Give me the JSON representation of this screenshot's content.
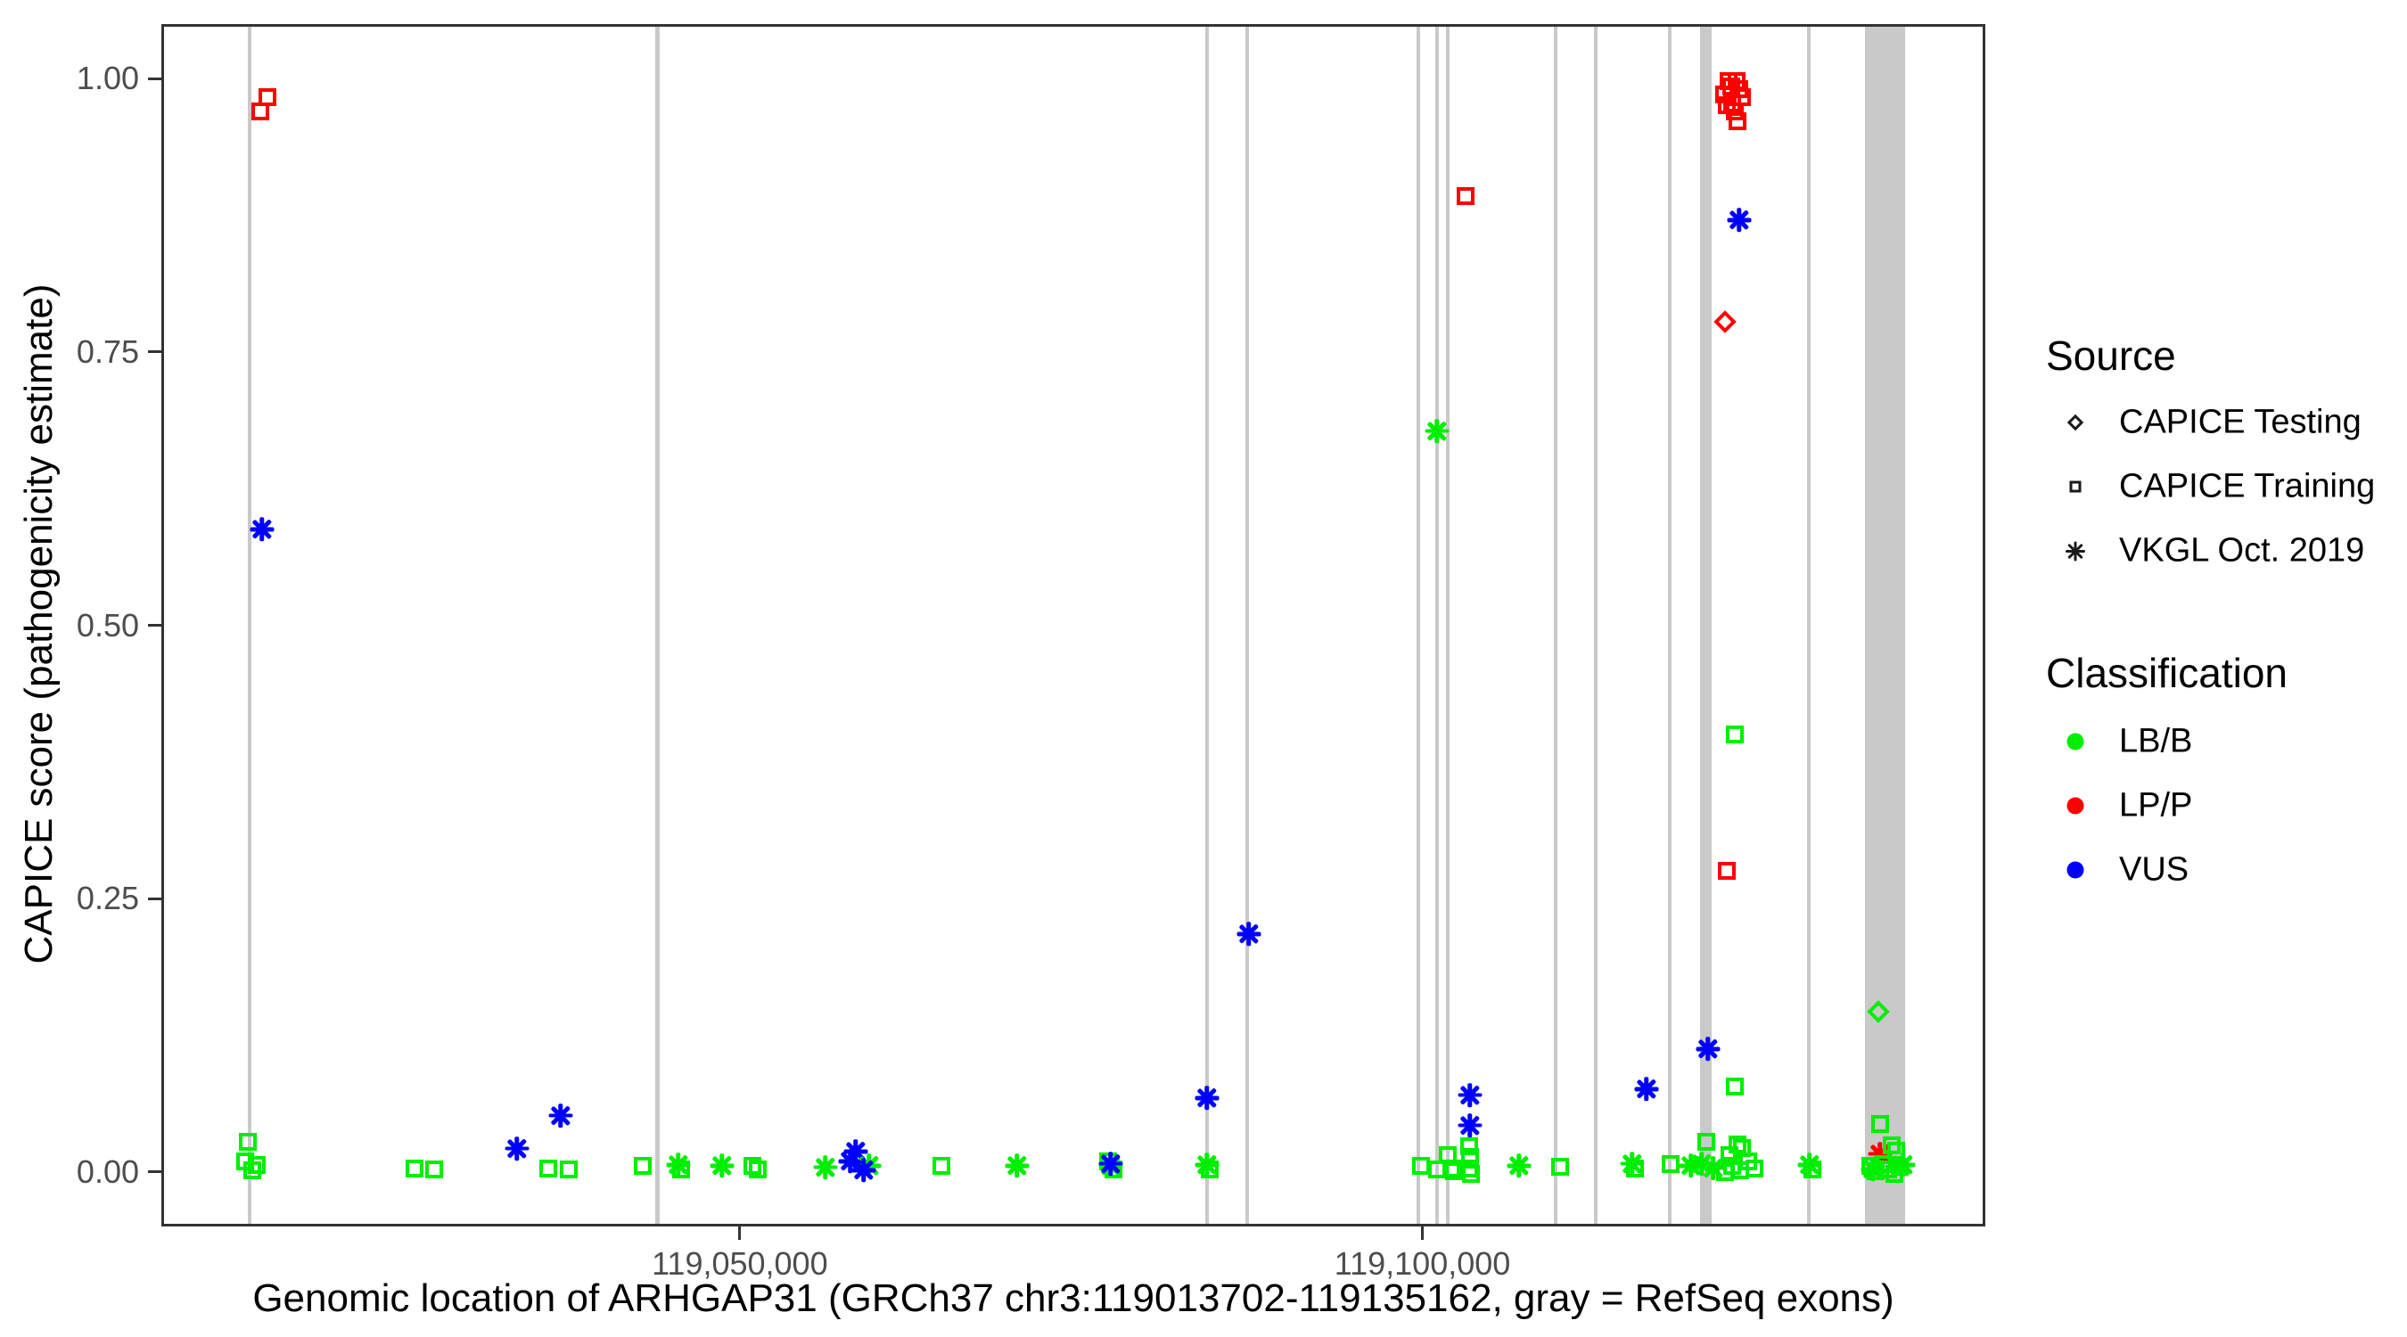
{
  "chart_data": {
    "type": "scatter",
    "xlabel": "Genomic location of ARHGAP31 (GRCh37 chr3:119013702-119135162, gray = RefSeq exons)",
    "ylabel": "CAPICE score (pathogenicity estimate)",
    "x_axis": {
      "min": 119007629,
      "max": 119141235,
      "ticks": [
        {
          "value": 119050000,
          "label": "119,050,000"
        },
        {
          "value": 119100000,
          "label": "119,100,000"
        }
      ]
    },
    "y_axis": {
      "min": -0.0498,
      "max": 1.0498,
      "ticks": [
        {
          "value": 0.0,
          "label": "0.00"
        },
        {
          "value": 0.25,
          "label": "0.25"
        },
        {
          "value": 0.5,
          "label": "0.50"
        },
        {
          "value": 0.75,
          "label": "0.75"
        },
        {
          "value": 1.0,
          "label": "1.00"
        }
      ]
    },
    "legend": {
      "source_title": "Source",
      "source_items": [
        {
          "label": "CAPICE Testing",
          "marker": "diamond"
        },
        {
          "label": "CAPICE Training",
          "marker": "square"
        },
        {
          "label": "VKGL Oct. 2019",
          "marker": "asterisk"
        }
      ],
      "classification_title": "Classification",
      "classification_items": [
        {
          "label": "LB/B",
          "color": "#00EE00"
        },
        {
          "label": "LP/P",
          "color": "#FF0000"
        },
        {
          "label": "VUS",
          "color": "#0000FF"
        }
      ]
    },
    "colors": {
      "LB/B": "#00EE00",
      "LP/P": "#FF0000",
      "VUS": "#0000FF"
    },
    "exon_color": "#C9C9C9",
    "exons": [
      {
        "start": 119013770,
        "end": 119014030
      },
      {
        "start": 119043640,
        "end": 119043940
      },
      {
        "start": 119083920,
        "end": 119084180
      },
      {
        "start": 119086860,
        "end": 119087120
      },
      {
        "start": 119099380,
        "end": 119099640
      },
      {
        "start": 119100760,
        "end": 119101020
      },
      {
        "start": 119101540,
        "end": 119101800
      },
      {
        "start": 119109420,
        "end": 119109680
      },
      {
        "start": 119112360,
        "end": 119112620
      },
      {
        "start": 119117800,
        "end": 119118060
      },
      {
        "start": 119120140,
        "end": 119121000
      },
      {
        "start": 119127980,
        "end": 119128240
      },
      {
        "start": 119132250,
        "end": 119135160
      }
    ],
    "points": [
      {
        "pos": 119015200,
        "score": 0.985,
        "src": "training",
        "cls": "LP/P"
      },
      {
        "pos": 119014700,
        "score": 0.972,
        "src": "training",
        "cls": "LP/P"
      },
      {
        "pos": 119014800,
        "score": 0.59,
        "src": "vkgl",
        "cls": "VUS"
      },
      {
        "pos": 119013750,
        "score": 0.03,
        "src": "training",
        "cls": "LB/B"
      },
      {
        "pos": 119013600,
        "score": 0.012,
        "src": "training",
        "cls": "LB/B"
      },
      {
        "pos": 119014100,
        "score": 0.004,
        "src": "training",
        "cls": "LB/B"
      },
      {
        "pos": 119014400,
        "score": 0.009,
        "src": "training",
        "cls": "LB/B"
      },
      {
        "pos": 119026000,
        "score": 0.006,
        "src": "training",
        "cls": "LB/B"
      },
      {
        "pos": 119027400,
        "score": 0.005,
        "src": "training",
        "cls": "LB/B"
      },
      {
        "pos": 119033500,
        "score": 0.024,
        "src": "vkgl",
        "cls": "VUS"
      },
      {
        "pos": 119035800,
        "score": 0.006,
        "src": "training",
        "cls": "LB/B"
      },
      {
        "pos": 119037300,
        "score": 0.005,
        "src": "training",
        "cls": "LB/B"
      },
      {
        "pos": 119036700,
        "score": 0.054,
        "src": "vkgl",
        "cls": "VUS"
      },
      {
        "pos": 119042700,
        "score": 0.008,
        "src": "training",
        "cls": "LB/B"
      },
      {
        "pos": 119045300,
        "score": 0.009,
        "src": "vkgl",
        "cls": "LB/B"
      },
      {
        "pos": 119045500,
        "score": 0.005,
        "src": "training",
        "cls": "LB/B"
      },
      {
        "pos": 119048500,
        "score": 0.008,
        "src": "vkgl",
        "cls": "LB/B"
      },
      {
        "pos": 119050700,
        "score": 0.008,
        "src": "training",
        "cls": "LB/B"
      },
      {
        "pos": 119051100,
        "score": 0.005,
        "src": "training",
        "cls": "LB/B"
      },
      {
        "pos": 119056100,
        "score": 0.007,
        "src": "vkgl",
        "cls": "LB/B"
      },
      {
        "pos": 119058300,
        "score": 0.021,
        "src": "vkgl",
        "cls": "VUS"
      },
      {
        "pos": 119057900,
        "score": 0.012,
        "src": "vkgl",
        "cls": "VUS"
      },
      {
        "pos": 119059300,
        "score": 0.008,
        "src": "vkgl",
        "cls": "LB/B"
      },
      {
        "pos": 119058900,
        "score": 0.004,
        "src": "vkgl",
        "cls": "VUS"
      },
      {
        "pos": 119064600,
        "score": 0.008,
        "src": "training",
        "cls": "LB/B"
      },
      {
        "pos": 119070100,
        "score": 0.008,
        "src": "vkgl",
        "cls": "LB/B"
      },
      {
        "pos": 119076800,
        "score": 0.012,
        "src": "training",
        "cls": "LB/B"
      },
      {
        "pos": 119077200,
        "score": 0.005,
        "src": "training",
        "cls": "LB/B"
      },
      {
        "pos": 119077000,
        "score": 0.008,
        "src": "vkgl",
        "cls": "LB/B"
      },
      {
        "pos": 119077000,
        "score": 0.01,
        "src": "vkgl",
        "cls": "VUS"
      },
      {
        "pos": 119084000,
        "score": 0.07,
        "src": "vkgl",
        "cls": "VUS"
      },
      {
        "pos": 119084050,
        "score": 0.009,
        "src": "vkgl",
        "cls": "LB/B"
      },
      {
        "pos": 119084200,
        "score": 0.005,
        "src": "training",
        "cls": "LB/B"
      },
      {
        "pos": 119087100,
        "score": 0.22,
        "src": "vkgl",
        "cls": "VUS"
      },
      {
        "pos": 119099700,
        "score": 0.008,
        "src": "training",
        "cls": "LB/B"
      },
      {
        "pos": 119100900,
        "score": 0.005,
        "src": "training",
        "cls": "LB/B"
      },
      {
        "pos": 119101650,
        "score": 0.018,
        "src": "training",
        "cls": "LB/B"
      },
      {
        "pos": 119101900,
        "score": 0.006,
        "src": "training",
        "cls": "LB/B"
      },
      {
        "pos": 119102100,
        "score": 0.003,
        "src": "training",
        "cls": "LB/B"
      },
      {
        "pos": 119100850,
        "score": 0.68,
        "src": "vkgl",
        "cls": "LB/B"
      },
      {
        "pos": 119103000,
        "score": 0.895,
        "src": "training",
        "cls": "LP/P"
      },
      {
        "pos": 119103300,
        "score": 0.073,
        "src": "vkgl",
        "cls": "VUS"
      },
      {
        "pos": 119103300,
        "score": 0.045,
        "src": "vkgl",
        "cls": "VUS"
      },
      {
        "pos": 119103200,
        "score": 0.026,
        "src": "training",
        "cls": "LB/B"
      },
      {
        "pos": 119103300,
        "score": 0.016,
        "src": "training",
        "cls": "LB/B"
      },
      {
        "pos": 119103250,
        "score": 0.006,
        "src": "training",
        "cls": "LB/B"
      },
      {
        "pos": 119103350,
        "score": 0.001,
        "src": "training",
        "cls": "LB/B"
      },
      {
        "pos": 119106900,
        "score": 0.008,
        "src": "vkgl",
        "cls": "LB/B"
      },
      {
        "pos": 119109900,
        "score": 0.007,
        "src": "training",
        "cls": "LB/B"
      },
      {
        "pos": 119115200,
        "score": 0.01,
        "src": "vkgl",
        "cls": "LB/B"
      },
      {
        "pos": 119115400,
        "score": 0.006,
        "src": "training",
        "cls": "LB/B"
      },
      {
        "pos": 119116200,
        "score": 0.078,
        "src": "vkgl",
        "cls": "VUS"
      },
      {
        "pos": 119118000,
        "score": 0.01,
        "src": "training",
        "cls": "LB/B"
      },
      {
        "pos": 119120700,
        "score": 0.115,
        "src": "vkgl",
        "cls": "VUS"
      },
      {
        "pos": 119119500,
        "score": 0.008,
        "src": "vkgl",
        "cls": "LB/B"
      },
      {
        "pos": 119120600,
        "score": 0.03,
        "src": "training",
        "cls": "LB/B"
      },
      {
        "pos": 119120300,
        "score": 0.01,
        "src": "vkgl",
        "cls": "LB/B"
      },
      {
        "pos": 119121100,
        "score": 0.006,
        "src": "vkgl",
        "cls": "LB/B"
      },
      {
        "pos": 119122300,
        "score": 0.018,
        "src": "training",
        "cls": "LB/B"
      },
      {
        "pos": 119122900,
        "score": 0.028,
        "src": "training",
        "cls": "LB/B"
      },
      {
        "pos": 119123200,
        "score": 0.024,
        "src": "training",
        "cls": "LB/B"
      },
      {
        "pos": 119122500,
        "score": 0.008,
        "src": "training",
        "cls": "LB/B"
      },
      {
        "pos": 119123100,
        "score": 0.004,
        "src": "training",
        "cls": "LB/B"
      },
      {
        "pos": 119123700,
        "score": 0.012,
        "src": "training",
        "cls": "LB/B"
      },
      {
        "pos": 119124100,
        "score": 0.006,
        "src": "training",
        "cls": "LB/B"
      },
      {
        "pos": 119122000,
        "score": 0.002,
        "src": "training",
        "cls": "LB/B"
      },
      {
        "pos": 119122700,
        "score": 0.081,
        "src": "training",
        "cls": "LB/B"
      },
      {
        "pos": 119122700,
        "score": 0.403,
        "src": "training",
        "cls": "LB/B"
      },
      {
        "pos": 119122100,
        "score": 0.278,
        "src": "training",
        "cls": "LP/P"
      },
      {
        "pos": 119122000,
        "score": 0.78,
        "src": "testing",
        "cls": "LP/P"
      },
      {
        "pos": 119123000,
        "score": 0.873,
        "src": "vkgl",
        "cls": "VUS"
      },
      {
        "pos": 119122200,
        "score": 1.0,
        "src": "training",
        "cls": "LP/P"
      },
      {
        "pos": 119122800,
        "score": 1.0,
        "src": "training",
        "cls": "LP/P"
      },
      {
        "pos": 119122400,
        "score": 0.995,
        "src": "training",
        "cls": "LP/P"
      },
      {
        "pos": 119123000,
        "score": 0.993,
        "src": "training",
        "cls": "LP/P"
      },
      {
        "pos": 119121900,
        "score": 0.988,
        "src": "training",
        "cls": "LP/P"
      },
      {
        "pos": 119123200,
        "score": 0.985,
        "src": "training",
        "cls": "LP/P"
      },
      {
        "pos": 119122500,
        "score": 0.98,
        "src": "training",
        "cls": "LP/P"
      },
      {
        "pos": 119122100,
        "score": 0.978,
        "src": "training",
        "cls": "LP/P"
      },
      {
        "pos": 119122700,
        "score": 0.972,
        "src": "training",
        "cls": "LP/P"
      },
      {
        "pos": 119122900,
        "score": 0.963,
        "src": "training",
        "cls": "LP/P"
      },
      {
        "pos": 119128200,
        "score": 0.009,
        "src": "vkgl",
        "cls": "LB/B"
      },
      {
        "pos": 119128400,
        "score": 0.005,
        "src": "training",
        "cls": "LB/B"
      },
      {
        "pos": 119133350,
        "score": 0.046,
        "src": "training",
        "cls": "LB/B"
      },
      {
        "pos": 119133350,
        "score": 0.019,
        "src": "vkgl",
        "cls": "LP/P"
      },
      {
        "pos": 119134200,
        "score": 0.027,
        "src": "training",
        "cls": "LB/B"
      },
      {
        "pos": 119134500,
        "score": 0.022,
        "src": "training",
        "cls": "LB/B"
      },
      {
        "pos": 119132600,
        "score": 0.008,
        "src": "training",
        "cls": "LB/B"
      },
      {
        "pos": 119133000,
        "score": 0.003,
        "src": "training",
        "cls": "LB/B"
      },
      {
        "pos": 119133500,
        "score": 0.01,
        "src": "training",
        "cls": "LB/B"
      },
      {
        "pos": 119133900,
        "score": 0.005,
        "src": "training",
        "cls": "LB/B"
      },
      {
        "pos": 119134400,
        "score": 0.001,
        "src": "training",
        "cls": "LB/B"
      },
      {
        "pos": 119134800,
        "score": 0.007,
        "src": "training",
        "cls": "LB/B"
      },
      {
        "pos": 119132800,
        "score": 0.005,
        "src": "vkgl",
        "cls": "LB/B"
      },
      {
        "pos": 119135000,
        "score": 0.009,
        "src": "vkgl",
        "cls": "LB/B"
      },
      {
        "pos": 119133200,
        "score": 0.149,
        "src": "testing",
        "cls": "LB/B"
      }
    ]
  }
}
